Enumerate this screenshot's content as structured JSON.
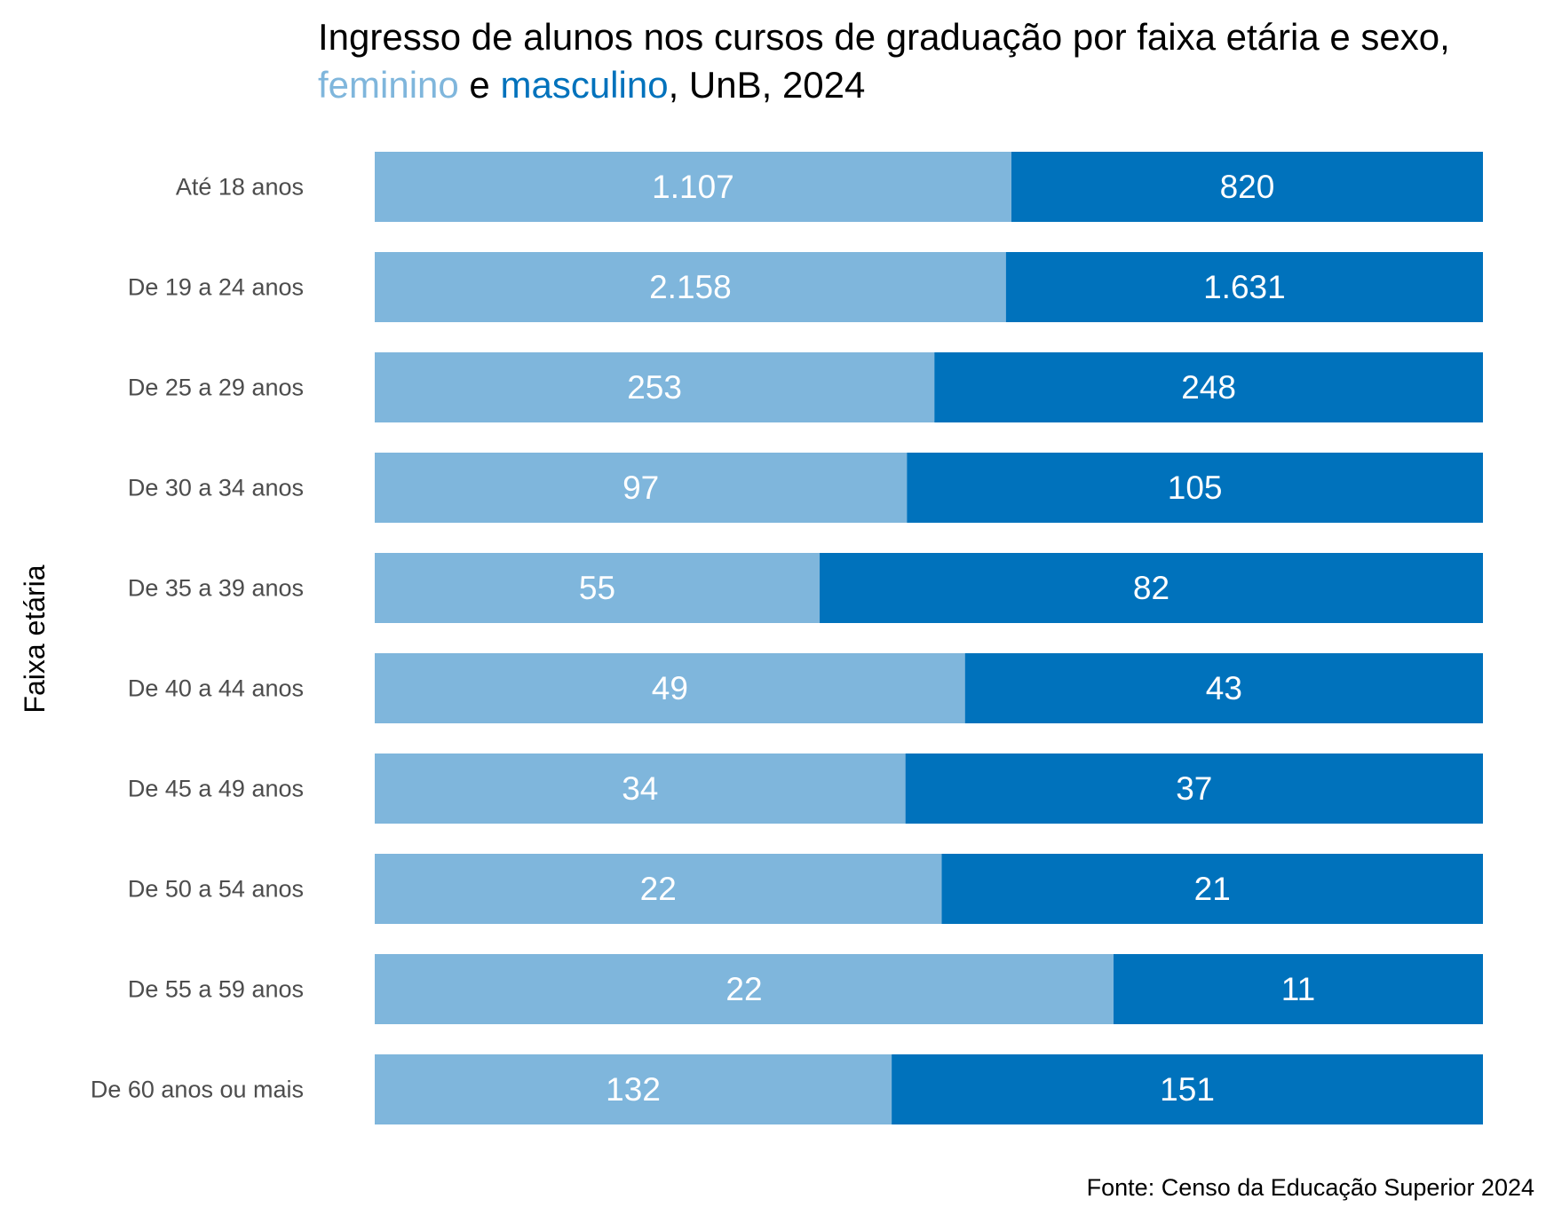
{
  "chart_data": {
    "type": "bar",
    "orientation": "horizontal",
    "stacking": "proportional",
    "title_line1": "Ingresso de alunos nos cursos de graduação por faixa etária e sexo,",
    "title_line2": {
      "feminino": "feminino",
      "connector": " e ",
      "masculino": "masculino",
      "rest": ", UnB, 2024"
    },
    "ylabel": "Faixa etária",
    "caption": "Fonte: Censo da Educação Superior 2024",
    "categories": [
      "Até 18 anos",
      "De 19 a 24 anos",
      "De 25 a 29 anos",
      "De 30 a 34 anos",
      "De 35 a 39 anos",
      "De 40 a 44 anos",
      "De 45 a 49 anos",
      "De 50 a 54 anos",
      "De 55 a 59 anos",
      "De 60 anos ou mais"
    ],
    "series": [
      {
        "key": "feminino",
        "color": "#7fb6dc",
        "values": [
          1107,
          2158,
          253,
          97,
          55,
          49,
          34,
          22,
          22,
          132
        ],
        "labels": [
          "1.107",
          "2.158",
          "253",
          "97",
          "55",
          "49",
          "34",
          "22",
          "22",
          "132"
        ]
      },
      {
        "key": "masculino",
        "color": "#0072bc",
        "values": [
          820,
          1631,
          248,
          105,
          82,
          43,
          37,
          21,
          11,
          151
        ],
        "labels": [
          "820",
          "1.631",
          "248",
          "105",
          "82",
          "43",
          "37",
          "21",
          "11",
          "151"
        ]
      }
    ],
    "legend": "in-title",
    "grid": false
  }
}
